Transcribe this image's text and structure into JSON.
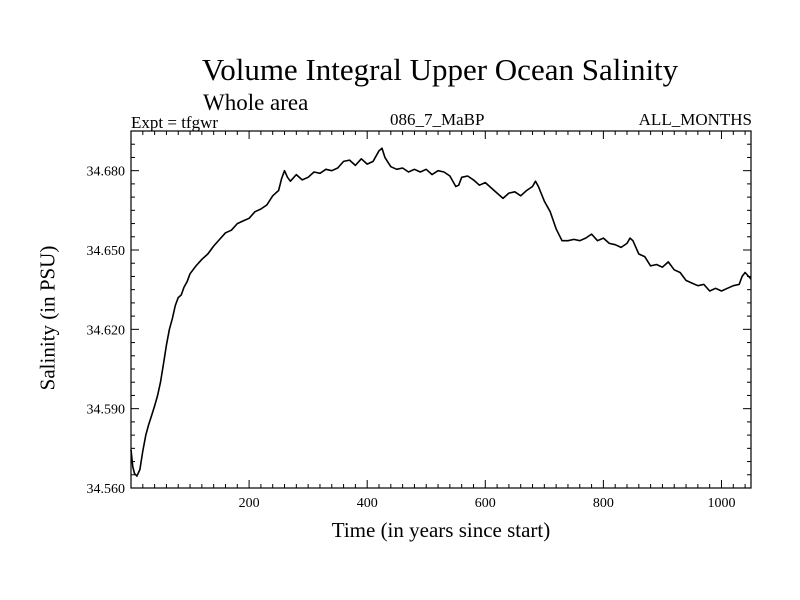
{
  "chart_data": {
    "type": "line",
    "title": "Volume Integral Upper Ocean Salinity",
    "subtitle": "Whole area",
    "header_left": "Expt = tfgwr",
    "header_center": "086_7_MaBP",
    "header_right": "ALL_MONTHS",
    "xlabel": "Time (in years since start)",
    "ylabel": "Salinity (in PSU)",
    "xlim": [
      0,
      1050
    ],
    "ylim": [
      34.56,
      34.695
    ],
    "xticks": [
      200,
      400,
      600,
      800,
      1000
    ],
    "xtick_labels": [
      "200",
      "400",
      "600",
      "800",
      "1000"
    ],
    "yticks": [
      34.56,
      34.59,
      34.62,
      34.65,
      34.68
    ],
    "ytick_labels": [
      "34.560",
      "34.590",
      "34.620",
      "34.650",
      "34.680"
    ],
    "grid": false,
    "color": "#000000",
    "series": [
      {
        "name": "Salinity",
        "x": [
          0,
          3,
          6,
          10,
          15,
          20,
          25,
          30,
          35,
          40,
          45,
          50,
          55,
          60,
          65,
          70,
          75,
          80,
          85,
          90,
          95,
          100,
          110,
          120,
          130,
          140,
          150,
          160,
          170,
          180,
          190,
          200,
          210,
          220,
          230,
          240,
          250,
          255,
          260,
          265,
          270,
          280,
          290,
          300,
          310,
          320,
          330,
          340,
          350,
          360,
          370,
          380,
          390,
          400,
          410,
          420,
          425,
          430,
          440,
          450,
          460,
          470,
          480,
          490,
          500,
          510,
          520,
          530,
          540,
          550,
          555,
          560,
          570,
          580,
          590,
          600,
          610,
          620,
          630,
          640,
          650,
          660,
          670,
          680,
          685,
          690,
          700,
          710,
          720,
          730,
          740,
          750,
          760,
          770,
          780,
          790,
          800,
          810,
          820,
          830,
          840,
          845,
          850,
          860,
          870,
          880,
          890,
          900,
          910,
          920,
          930,
          940,
          950,
          960,
          970,
          980,
          990,
          1000,
          1010,
          1020,
          1030,
          1035,
          1040,
          1050
        ],
        "values": [
          34.5745,
          34.568,
          34.5655,
          34.5645,
          34.567,
          34.574,
          34.58,
          34.584,
          34.5875,
          34.591,
          34.595,
          34.6,
          34.607,
          34.614,
          34.62,
          34.624,
          34.629,
          34.632,
          34.633,
          34.636,
          34.638,
          34.641,
          34.644,
          34.6465,
          34.6485,
          34.6515,
          34.654,
          34.6565,
          34.6575,
          34.66,
          34.661,
          34.662,
          34.6645,
          34.6655,
          34.667,
          34.6705,
          34.6725,
          34.677,
          34.68,
          34.6775,
          34.676,
          34.6785,
          34.6765,
          34.6775,
          34.6795,
          34.679,
          34.6805,
          34.68,
          34.681,
          34.6835,
          34.684,
          34.682,
          34.6845,
          34.6825,
          34.6835,
          34.6875,
          34.6885,
          34.685,
          34.6815,
          34.6805,
          34.681,
          34.6795,
          34.6805,
          34.6795,
          34.6805,
          34.6785,
          34.68,
          34.6795,
          34.678,
          34.674,
          34.6745,
          34.6775,
          34.678,
          34.6765,
          34.6745,
          34.6755,
          34.6735,
          34.6715,
          34.6695,
          34.6715,
          34.672,
          34.6705,
          34.6725,
          34.674,
          34.676,
          34.674,
          34.6685,
          34.6645,
          34.658,
          34.6535,
          34.6535,
          34.654,
          34.6535,
          34.6545,
          34.656,
          34.6535,
          34.6545,
          34.6525,
          34.652,
          34.651,
          34.6525,
          34.6545,
          34.6535,
          34.6485,
          34.6475,
          34.644,
          34.6445,
          34.6435,
          34.6455,
          34.6425,
          34.6415,
          34.6385,
          34.6375,
          34.6365,
          34.637,
          34.6345,
          34.6355,
          34.6345,
          34.6355,
          34.6365,
          34.637,
          34.64,
          34.6415,
          34.639
        ]
      }
    ]
  }
}
